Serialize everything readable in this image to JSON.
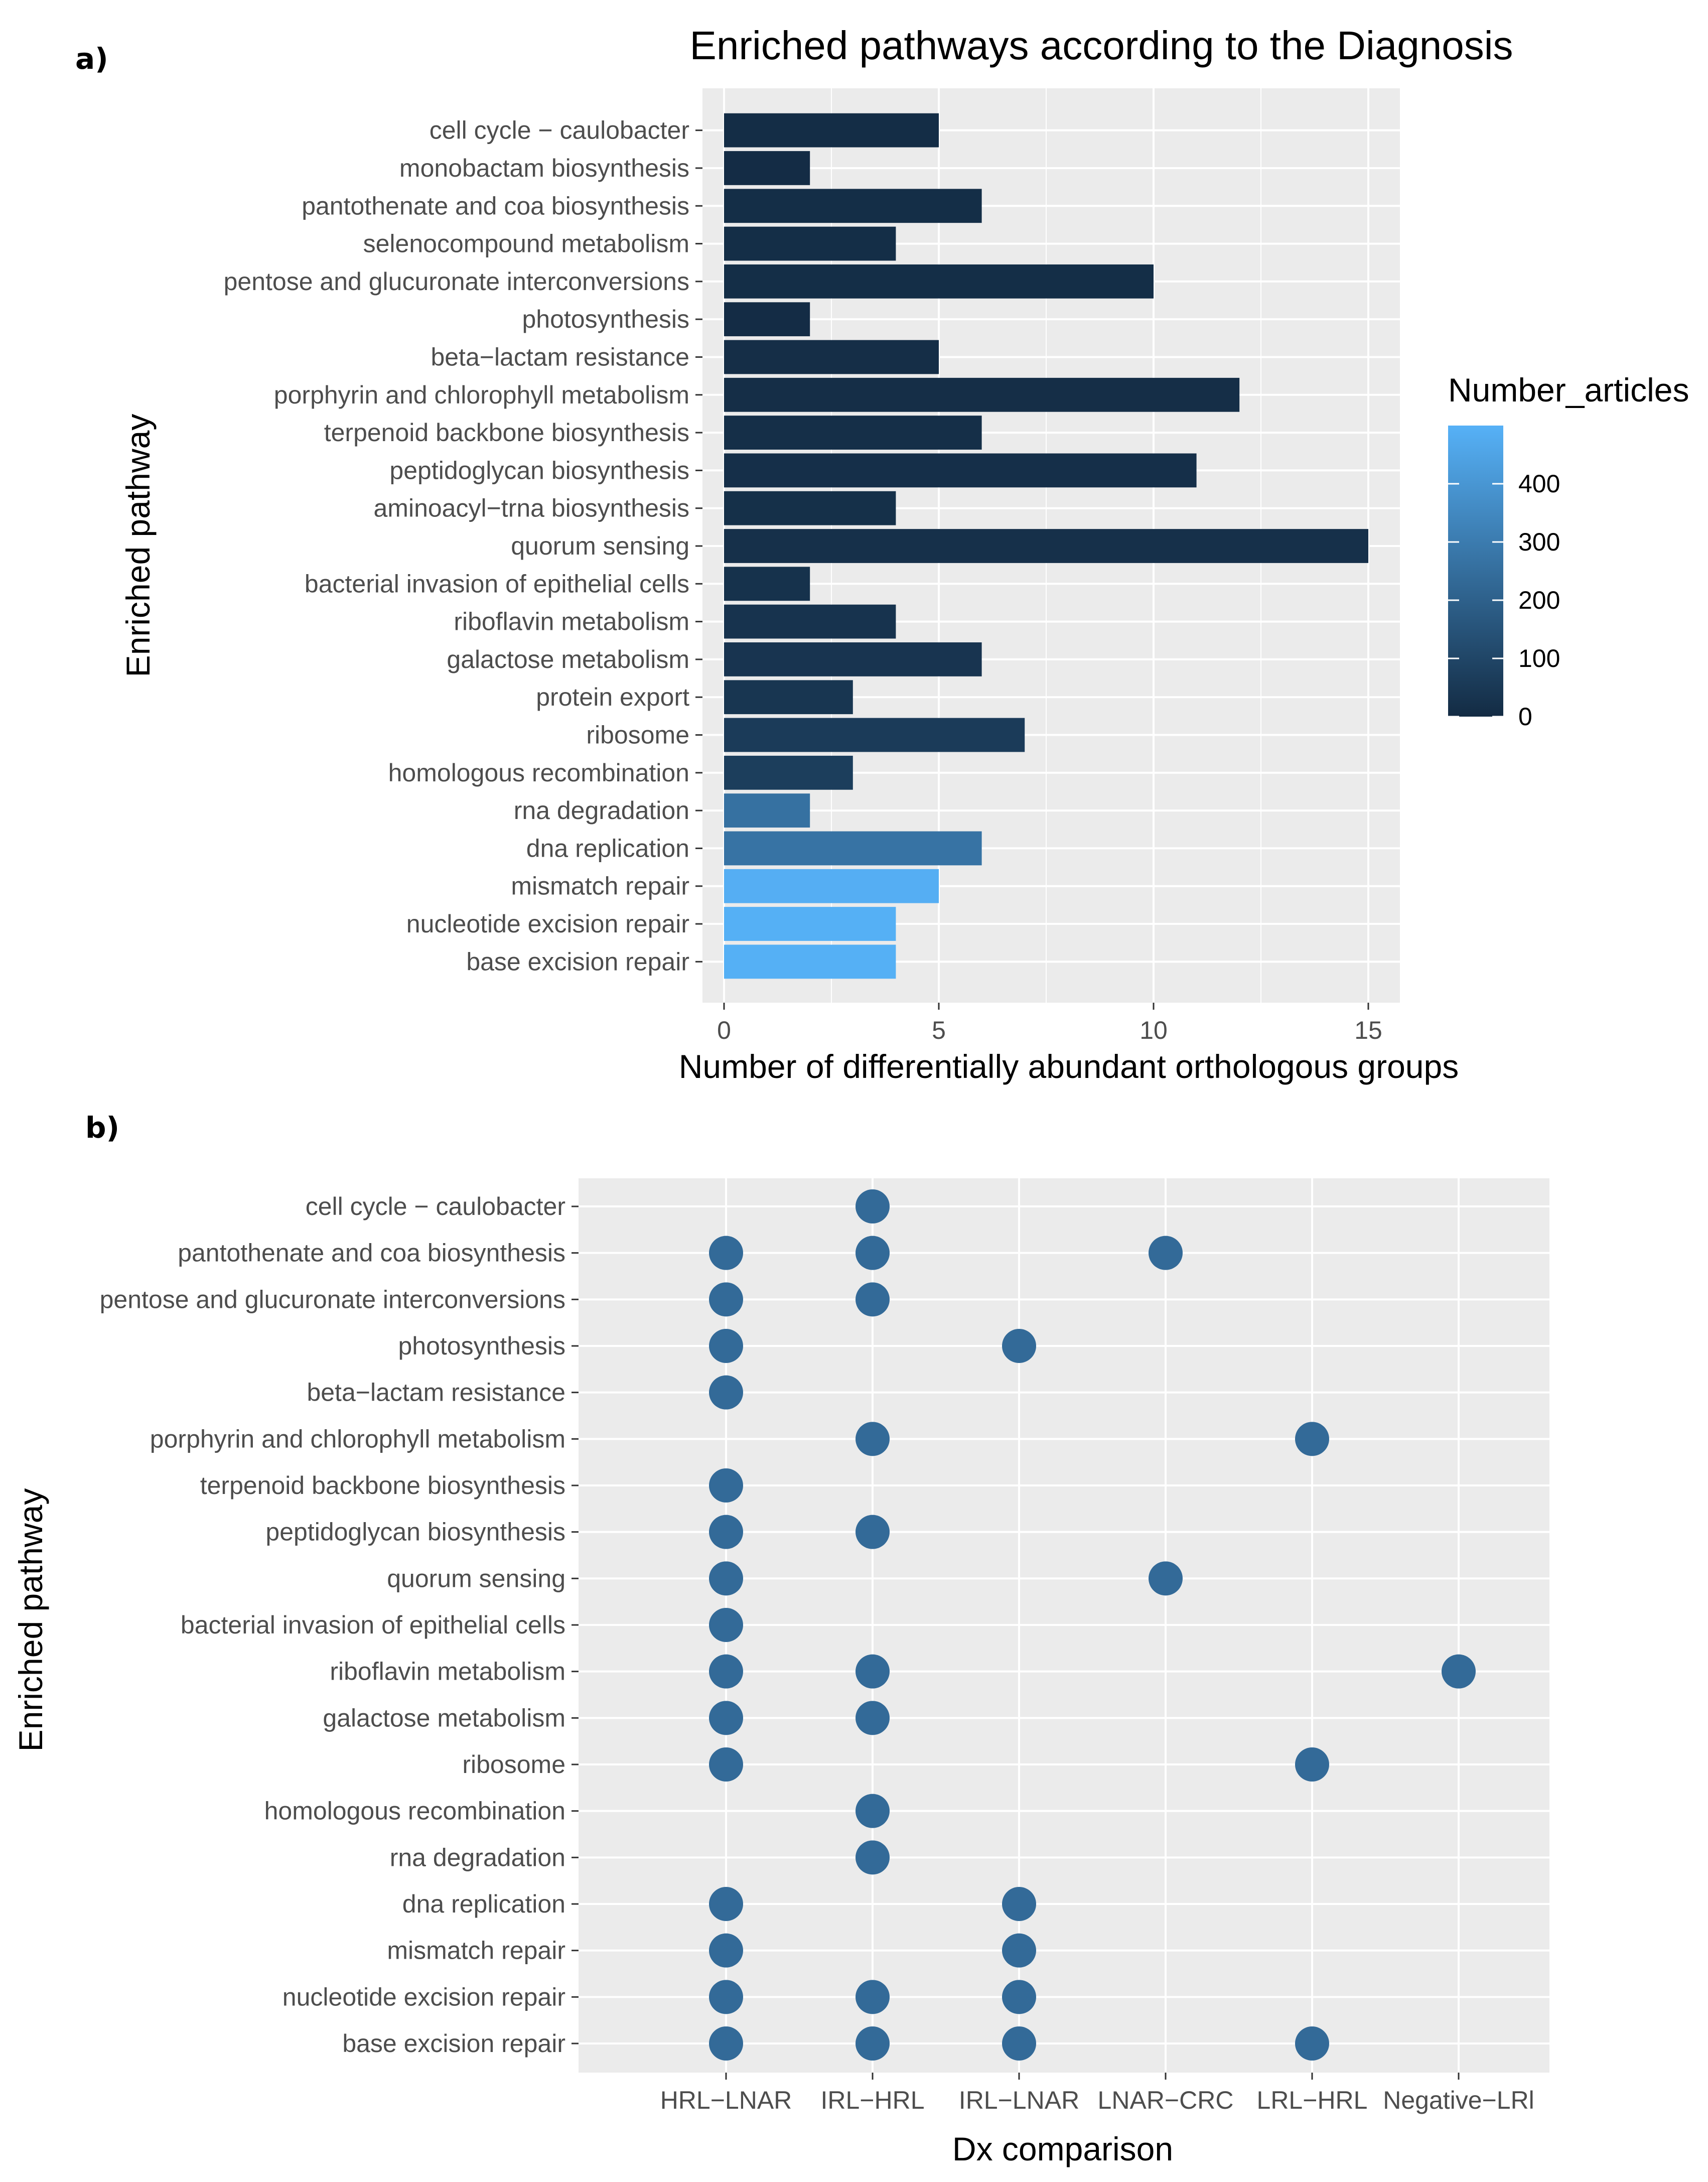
{
  "chart_data": [
    {
      "panel": "a)",
      "type": "bar",
      "orientation": "horizontal",
      "title": "Enriched pathways according to the Diagnosis",
      "xlabel": "Number of differentially abundant orthologous groups",
      "ylabel": "Enriched pathway",
      "xlim": [
        0,
        15.7
      ],
      "xticks": [
        0,
        5,
        10,
        15
      ],
      "grid": true,
      "categories": [
        "cell cycle − caulobacter",
        "monobactam biosynthesis",
        "pantothenate and coa biosynthesis",
        "selenocompound metabolism",
        "pentose and glucuronate interconversions",
        "photosynthesis",
        "beta−lactam resistance",
        "porphyrin and chlorophyll metabolism",
        "terpenoid backbone biosynthesis",
        "peptidoglycan biosynthesis",
        "aminoacyl−trna biosynthesis",
        "quorum sensing",
        "bacterial invasion of epithelial cells",
        "riboflavin metabolism",
        "galactose metabolism",
        "protein export",
        "ribosome",
        "homologous recombination",
        "rna degradation",
        "dna replication",
        "mismatch repair",
        "nucleotide excision repair",
        "base excision repair"
      ],
      "values": [
        5,
        2,
        6,
        4,
        10,
        2,
        5,
        12,
        6,
        11,
        4,
        15,
        2,
        4,
        6,
        3,
        7,
        3,
        2,
        6,
        5,
        4,
        4
      ],
      "fill_values": [
        8,
        5,
        10,
        10,
        10,
        5,
        12,
        12,
        14,
        16,
        18,
        20,
        25,
        30,
        35,
        40,
        60,
        70,
        260,
        270,
        490,
        495,
        495
      ],
      "legend": {
        "title": "Number_articles",
        "ticks": [
          0,
          100,
          200,
          300,
          400
        ],
        "range": [
          0,
          500
        ],
        "low_color": "#132B43",
        "high_color": "#56B1F7",
        "placement": "right"
      }
    },
    {
      "panel": "b)",
      "type": "scatter",
      "xlabel": "Dx comparison",
      "ylabel": "Enriched pathway",
      "grid": true,
      "point_color": "#336A98",
      "x_categories": [
        "HRL−LNAR",
        "IRL−HRL",
        "IRL−LNAR",
        "LNAR−CRC",
        "LRL−HRL",
        "Negative−LRl"
      ],
      "y_categories": [
        "cell cycle − caulobacter",
        "pantothenate and coa biosynthesis",
        "pentose and glucuronate interconversions",
        "photosynthesis",
        "beta−lactam resistance",
        "porphyrin and chlorophyll metabolism",
        "terpenoid backbone biosynthesis",
        "peptidoglycan biosynthesis",
        "quorum sensing",
        "bacterial invasion of epithelial cells",
        "riboflavin metabolism",
        "galactose metabolism",
        "ribosome",
        "homologous recombination",
        "rna degradation",
        "dna replication",
        "mismatch repair",
        "nucleotide excision repair",
        "base excision repair"
      ],
      "points": [
        {
          "row": 0,
          "cols": [
            1
          ]
        },
        {
          "row": 1,
          "cols": [
            0,
            1,
            3
          ]
        },
        {
          "row": 2,
          "cols": [
            0,
            1
          ]
        },
        {
          "row": 3,
          "cols": [
            0,
            2
          ]
        },
        {
          "row": 4,
          "cols": [
            0
          ]
        },
        {
          "row": 5,
          "cols": [
            1,
            4
          ]
        },
        {
          "row": 6,
          "cols": [
            0
          ]
        },
        {
          "row": 7,
          "cols": [
            0,
            1
          ]
        },
        {
          "row": 8,
          "cols": [
            0,
            3
          ]
        },
        {
          "row": 9,
          "cols": [
            0
          ]
        },
        {
          "row": 10,
          "cols": [
            0,
            1,
            5
          ]
        },
        {
          "row": 11,
          "cols": [
            0,
            1
          ]
        },
        {
          "row": 12,
          "cols": [
            0,
            4
          ]
        },
        {
          "row": 13,
          "cols": [
            1
          ]
        },
        {
          "row": 14,
          "cols": [
            1
          ]
        },
        {
          "row": 15,
          "cols": [
            0,
            2
          ]
        },
        {
          "row": 16,
          "cols": [
            0,
            2
          ]
        },
        {
          "row": 17,
          "cols": [
            0,
            1,
            2
          ]
        },
        {
          "row": 18,
          "cols": [
            0,
            1,
            2,
            4
          ]
        }
      ]
    }
  ]
}
